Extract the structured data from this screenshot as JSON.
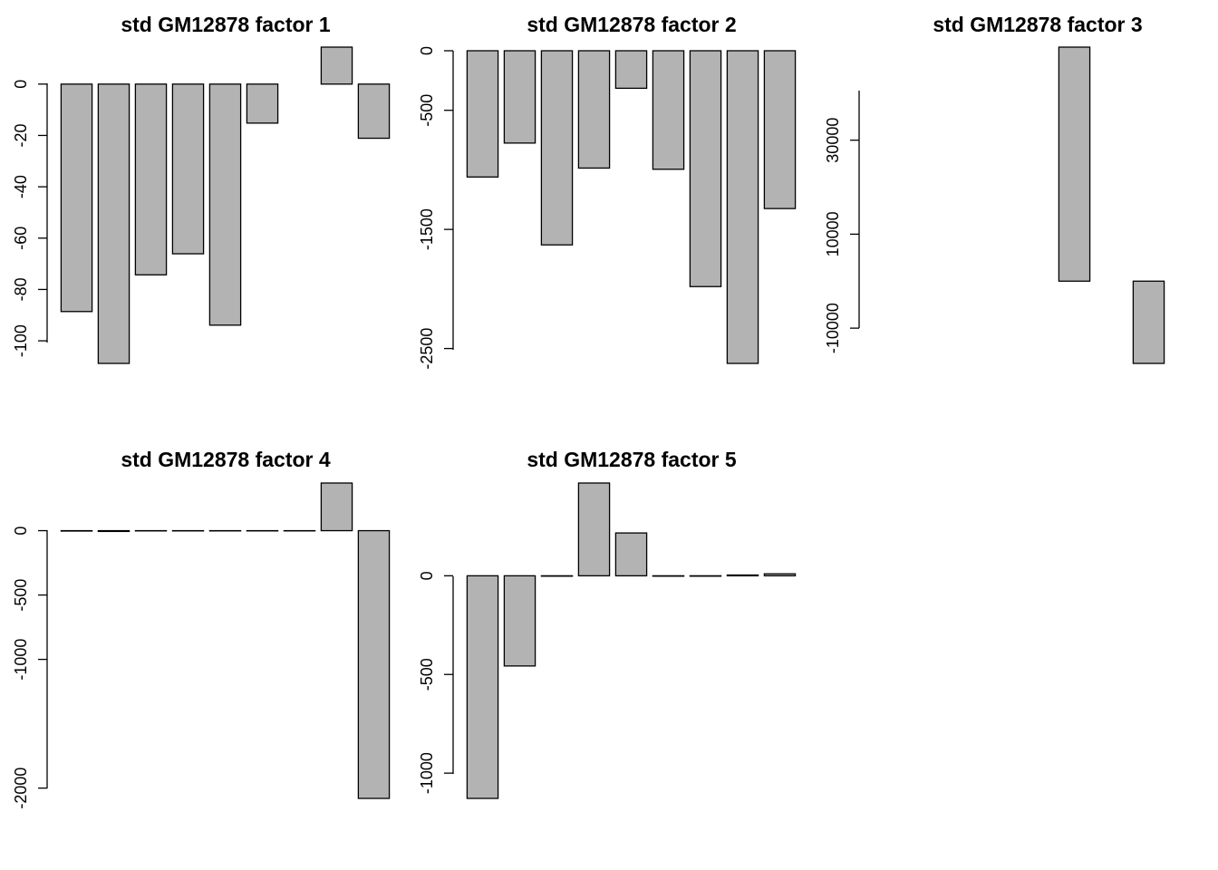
{
  "chart_data": [
    {
      "type": "bar",
      "title": "std GM12878 factor 1",
      "values": [
        -88.6,
        -108.8,
        -74.3,
        -66.1,
        -93.9,
        -15.2,
        0,
        14.4,
        -21.1
      ],
      "yticks": [
        0,
        -20,
        -40,
        -60,
        -80,
        -100
      ],
      "ylim": [
        -108.8,
        14.4
      ],
      "bar_color": "#b3b3b3"
    },
    {
      "type": "bar",
      "title": "std GM12878 factor 2",
      "values": [
        -1060,
        -775,
        -1630,
        -985,
        -315,
        -995,
        -1980,
        -2625,
        -1325
      ],
      "yticks": [
        0,
        -500,
        -1500,
        -2500
      ],
      "ylim": [
        -2625,
        0
      ],
      "bar_color": "#b3b3b3"
    },
    {
      "type": "bar",
      "title": "std GM12878 factor 3",
      "values": [
        0,
        0,
        0,
        0,
        0,
        49800,
        0,
        -17500,
        0
      ],
      "yticks": [
        -10000,
        10000,
        30000
      ],
      "ylim": [
        -17500,
        49800
      ],
      "bar_color": "#b3b3b3"
    },
    {
      "type": "bar",
      "title": "std GM12878 factor 4",
      "values": [
        -3,
        -6,
        -2,
        -2,
        -2,
        -2,
        -2,
        370,
        -2080
      ],
      "yticks": [
        0,
        -500,
        -1000,
        -2000
      ],
      "ylim": [
        -2080,
        370
      ],
      "bar_color": "#b3b3b3"
    },
    {
      "type": "bar",
      "title": "std GM12878 factor 5",
      "values": [
        -1128,
        -457,
        -2,
        470,
        217,
        -2,
        -2,
        4,
        10
      ],
      "yticks": [
        0,
        -500,
        -1000
      ],
      "ylim": [
        -1128,
        470
      ],
      "bar_color": "#b3b3b3"
    }
  ]
}
